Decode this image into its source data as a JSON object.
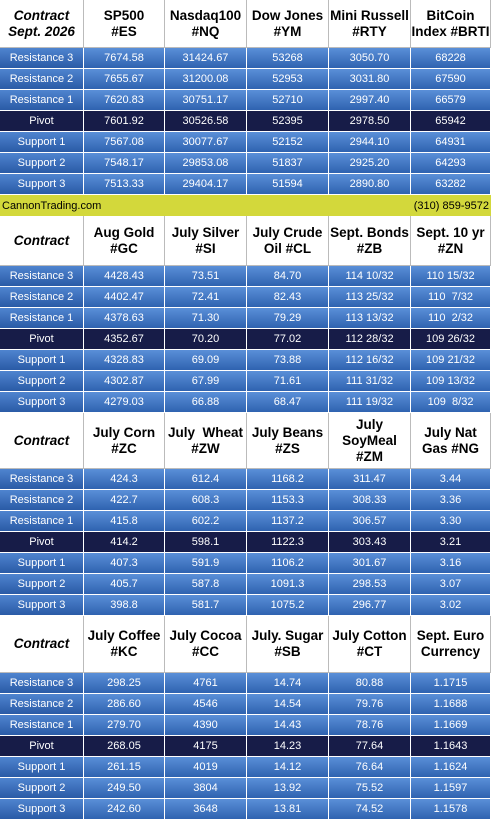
{
  "blocks": [
    {
      "header": [
        [
          "Contract",
          "Sept. 2026"
        ],
        [
          "SP500",
          "#ES"
        ],
        [
          "Nasdaq100",
          "#NQ"
        ],
        [
          "Dow Jones",
          "#YM"
        ],
        [
          "Mini Russell",
          "#RTY"
        ],
        [
          "BitCoin",
          "Index #BRTI"
        ]
      ],
      "rows": [
        {
          "label": "Resistance 3",
          "values": [
            "7674.58",
            "31424.67",
            "53268",
            "3050.70",
            "68228"
          ]
        },
        {
          "label": "Resistance 2",
          "values": [
            "7655.67",
            "31200.08",
            "52953",
            "3031.80",
            "67590"
          ]
        },
        {
          "label": "Resistance 1",
          "values": [
            "7620.83",
            "30751.17",
            "52710",
            "2997.40",
            "66579"
          ]
        },
        {
          "label": "Pivot",
          "values": [
            "7601.92",
            "30526.58",
            "52395",
            "2978.50",
            "65942"
          ]
        },
        {
          "label": "Support 1",
          "values": [
            "7567.08",
            "30077.67",
            "52152",
            "2944.10",
            "64931"
          ]
        },
        {
          "label": "Support 2",
          "values": [
            "7548.17",
            "29853.08",
            "51837",
            "2925.20",
            "64293"
          ]
        },
        {
          "label": "Support 3",
          "values": [
            "7513.33",
            "29404.17",
            "51594",
            "2890.80",
            "63282"
          ]
        }
      ]
    },
    {
      "header": [
        [
          "Contract"
        ],
        [
          "Aug Gold",
          "#GC"
        ],
        [
          "July Silver",
          "#SI"
        ],
        [
          "July Crude",
          "Oil #CL"
        ],
        [
          "Sept. Bonds",
          "#ZB"
        ],
        [
          "Sept. 10 yr",
          "#ZN"
        ]
      ],
      "rows": [
        {
          "label": "Resistance 3",
          "values": [
            "4428.43",
            "73.51",
            "84.70",
            "114 10/32",
            "110 15/32"
          ]
        },
        {
          "label": "Resistance 2",
          "values": [
            "4402.47",
            "72.41",
            "82.43",
            "113 25/32",
            "110  7/32"
          ]
        },
        {
          "label": "Resistance 1",
          "values": [
            "4378.63",
            "71.30",
            "79.29",
            "113 13/32",
            "110  2/32"
          ]
        },
        {
          "label": "Pivot",
          "values": [
            "4352.67",
            "70.20",
            "77.02",
            "112 28/32",
            "109 26/32"
          ]
        },
        {
          "label": "Support 1",
          "values": [
            "4328.83",
            "69.09",
            "73.88",
            "112 16/32",
            "109 21/32"
          ]
        },
        {
          "label": "Support 2",
          "values": [
            "4302.87",
            "67.99",
            "71.61",
            "111 31/32",
            "109 13/32"
          ]
        },
        {
          "label": "Support 3",
          "values": [
            "4279.03",
            "66.88",
            "68.47",
            "111 19/32",
            "109  8/32"
          ]
        }
      ]
    },
    {
      "header": [
        [
          "Contract"
        ],
        [
          "July Corn",
          "#ZC"
        ],
        [
          "July  Wheat",
          "#ZW"
        ],
        [
          "July Beans",
          "#ZS"
        ],
        [
          "July",
          "SoyMeal",
          "#ZM"
        ],
        [
          "July Nat",
          "Gas #NG"
        ]
      ],
      "rows": [
        {
          "label": "Resistance 3",
          "values": [
            "424.3",
            "612.4",
            "1168.2",
            "311.47",
            "3.44"
          ]
        },
        {
          "label": "Resistance 2",
          "values": [
            "422.7",
            "608.3",
            "1153.3",
            "308.33",
            "3.36"
          ]
        },
        {
          "label": "Resistance 1",
          "values": [
            "415.8",
            "602.2",
            "1137.2",
            "306.57",
            "3.30"
          ]
        },
        {
          "label": "Pivot",
          "values": [
            "414.2",
            "598.1",
            "1122.3",
            "303.43",
            "3.21"
          ]
        },
        {
          "label": "Support 1",
          "values": [
            "407.3",
            "591.9",
            "1106.2",
            "301.67",
            "3.16"
          ]
        },
        {
          "label": "Support 2",
          "values": [
            "405.7",
            "587.8",
            "1091.3",
            "298.53",
            "3.07"
          ]
        },
        {
          "label": "Support 3",
          "values": [
            "398.8",
            "581.7",
            "1075.2",
            "296.77",
            "3.02"
          ]
        }
      ]
    },
    {
      "header": [
        [
          "Contract"
        ],
        [
          "July Coffee",
          "#KC"
        ],
        [
          "July Cocoa",
          "#CC"
        ],
        [
          "July. Sugar",
          "#SB"
        ],
        [
          "July Cotton",
          "#CT"
        ],
        [
          "Sept. Euro",
          "Currency"
        ]
      ],
      "rows": [
        {
          "label": "Resistance 3",
          "values": [
            "298.25",
            "4761",
            "14.74",
            "80.88",
            "1.1715"
          ]
        },
        {
          "label": "Resistance 2",
          "values": [
            "286.60",
            "4546",
            "14.54",
            "79.76",
            "1.1688"
          ]
        },
        {
          "label": "Resistance 1",
          "values": [
            "279.70",
            "4390",
            "14.43",
            "78.76",
            "1.1669"
          ]
        },
        {
          "label": "Pivot",
          "values": [
            "268.05",
            "4175",
            "14.23",
            "77.64",
            "1.1643"
          ]
        },
        {
          "label": "Support 1",
          "values": [
            "261.15",
            "4019",
            "14.12",
            "76.64",
            "1.1624"
          ]
        },
        {
          "label": "Support 2",
          "values": [
            "249.50",
            "3804",
            "13.92",
            "75.52",
            "1.1597"
          ]
        },
        {
          "label": "Support 3",
          "values": [
            "242.60",
            "3648",
            "13.81",
            "74.52",
            "1.1578"
          ]
        }
      ]
    }
  ],
  "banner": {
    "left": "CannonTrading.com",
    "right": "(310) 859-9572"
  }
}
